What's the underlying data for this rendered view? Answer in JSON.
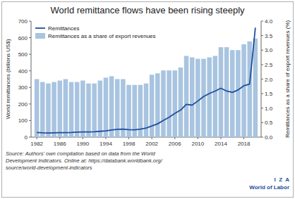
{
  "chart_data": {
    "type": "bar",
    "title": "World remittance flows have been rising steeply",
    "x": [
      1982,
      1983,
      1984,
      1985,
      1986,
      1987,
      1988,
      1989,
      1990,
      1991,
      1992,
      1993,
      1994,
      1995,
      1996,
      1997,
      1998,
      1999,
      2000,
      2001,
      2002,
      2003,
      2004,
      2005,
      2006,
      2007,
      2008,
      2009,
      2010,
      2011,
      2012,
      2013,
      2014,
      2015,
      2016,
      2017,
      2018,
      2019,
      2020
    ],
    "series": [
      {
        "name": "Remittances",
        "type": "line",
        "color": "#1f4e9c",
        "values": [
          28,
          26,
          25,
          26,
          27,
          27,
          28,
          30,
          31,
          31,
          32,
          35,
          38,
          43,
          47,
          48,
          45,
          44,
          48,
          55,
          67,
          80,
          101,
          120,
          143,
          163,
          198,
          193,
          218,
          245,
          263,
          278,
          295,
          278,
          270,
          285,
          310,
          320,
          660
        ]
      },
      {
        "name": "Remittances as a share of export revenues",
        "type": "bar",
        "color": "#a8c4e0",
        "axis": "y2",
        "values": [
          2.0,
          1.9,
          1.85,
          1.9,
          1.95,
          2.0,
          1.9,
          1.9,
          1.95,
          1.85,
          1.85,
          1.95,
          2.05,
          2.1,
          2.0,
          2.0,
          1.8,
          1.8,
          1.8,
          1.85,
          2.15,
          2.2,
          2.3,
          2.3,
          2.3,
          2.4,
          2.8,
          2.75,
          2.7,
          2.7,
          2.75,
          2.8,
          3.1,
          3.1,
          3.0,
          3.0,
          3.2,
          3.3,
          3.4
        ]
      }
    ],
    "xlim": [
      1981,
      2021
    ],
    "xticks": [
      1982,
      1986,
      1990,
      1994,
      1998,
      2002,
      2006,
      2010,
      2014,
      2018
    ],
    "ylabel": "World remittances (billions US$)",
    "ylim": [
      0,
      700
    ],
    "yticks": [
      0,
      100,
      200,
      300,
      400,
      500,
      600,
      700
    ],
    "y2label": "Remittances as a share of export revenues (%)",
    "y2lim": [
      0,
      4.0
    ],
    "y2ticks": [
      {
        "value": 0.0,
        "label": "0.0"
      },
      0.5,
      {
        "value": 1.0,
        "label": "1.0"
      },
      1.5,
      {
        "value": 2.0,
        "label": "2.0"
      },
      2.5,
      {
        "value": 3.0,
        "label": "3.0"
      },
      3.5,
      {
        "value": 4.0,
        "label": "4.0"
      }
    ],
    "grid": false,
    "legend": "upper left",
    "annotations": [
      "Source: Authors' own compilation based on data from the World\nDevelopment Indicators. Online at: https://databank.worldbank.org/\nsource/world-development-indicators",
      "I  Z  A\nWorld of Labor"
    ]
  }
}
